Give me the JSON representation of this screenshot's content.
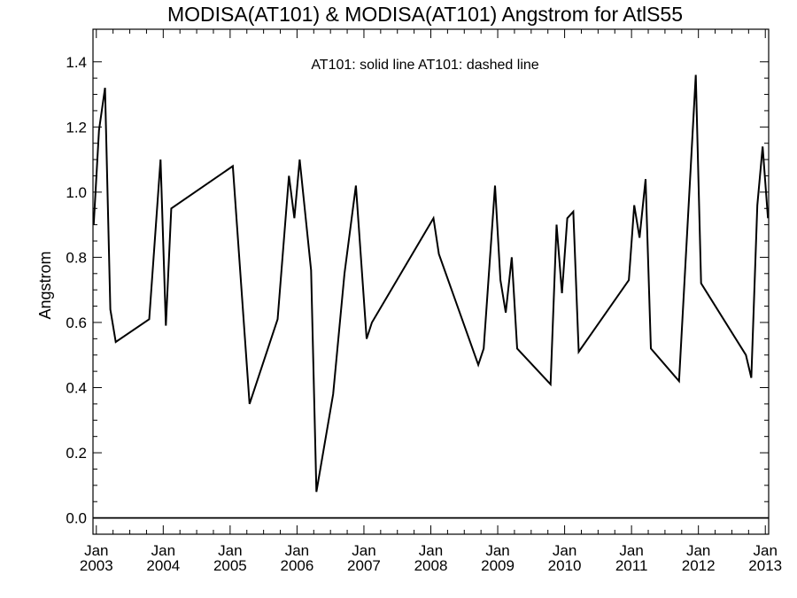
{
  "chart_data": {
    "type": "line",
    "title": "MODISA(AT101) & MODISA(AT101)  Angstrom for AtlS55",
    "xlabel": "",
    "ylabel": "Angstrom",
    "legend_text": "AT101: solid line   AT101: dashed line",
    "legend_placement": "top-center",
    "grid": false,
    "xlim": [
      2002.95,
      2013.05
    ],
    "ylim": [
      -0.05,
      1.5
    ],
    "x_ticks": [
      {
        "value": 2003,
        "month": "Jan",
        "year": "2003"
      },
      {
        "value": 2004,
        "month": "Jan",
        "year": "2004"
      },
      {
        "value": 2005,
        "month": "Jan",
        "year": "2005"
      },
      {
        "value": 2006,
        "month": "Jan",
        "year": "2006"
      },
      {
        "value": 2007,
        "month": "Jan",
        "year": "2007"
      },
      {
        "value": 2008,
        "month": "Jan",
        "year": "2008"
      },
      {
        "value": 2009,
        "month": "Jan",
        "year": "2009"
      },
      {
        "value": 2010,
        "month": "Jan",
        "year": "2010"
      },
      {
        "value": 2011,
        "month": "Jan",
        "year": "2011"
      },
      {
        "value": 2012,
        "month": "Jan",
        "year": "2012"
      },
      {
        "value": 2013,
        "month": "Jan",
        "year": "2013"
      }
    ],
    "y_ticks": [
      "0.0",
      "0.2",
      "0.4",
      "0.6",
      "0.8",
      "1.0",
      "1.2",
      "1.4"
    ],
    "reference_line_y": 0.0,
    "series": [
      {
        "style": "solid",
        "x": [
          2002.96,
          2003.04,
          2003.13,
          2003.21,
          2003.29,
          2003.79,
          2003.96,
          2004.04,
          2004.12,
          2005.04,
          2005.29,
          2005.71,
          2005.88,
          2005.96,
          2006.04,
          2006.21,
          2006.29,
          2006.54,
          2006.71,
          2006.88,
          2007.04,
          2007.12,
          2008.04,
          2008.12,
          2008.71,
          2008.79,
          2008.96,
          2009.04,
          2009.12,
          2009.21,
          2009.29,
          2009.79,
          2009.88,
          2009.96,
          2010.04,
          2010.13,
          2010.21,
          2010.96,
          2011.04,
          2011.12,
          2011.21,
          2011.29,
          2011.71,
          2011.96,
          2012.04,
          2012.71,
          2012.79,
          2012.88,
          2012.96,
          2013.04
        ],
        "y": [
          0.9,
          1.19,
          1.32,
          0.64,
          0.54,
          0.61,
          1.1,
          0.59,
          0.95,
          1.08,
          0.35,
          0.61,
          1.05,
          0.92,
          1.1,
          0.76,
          0.08,
          0.38,
          0.75,
          1.02,
          0.55,
          0.6,
          0.92,
          0.81,
          0.47,
          0.52,
          1.02,
          0.73,
          0.63,
          0.8,
          0.52,
          0.41,
          0.9,
          0.69,
          0.92,
          0.94,
          0.51,
          0.73,
          0.96,
          0.86,
          1.04,
          0.52,
          0.42,
          1.36,
          0.72,
          0.5,
          0.43,
          0.96,
          1.14,
          0.92
        ]
      }
    ]
  }
}
